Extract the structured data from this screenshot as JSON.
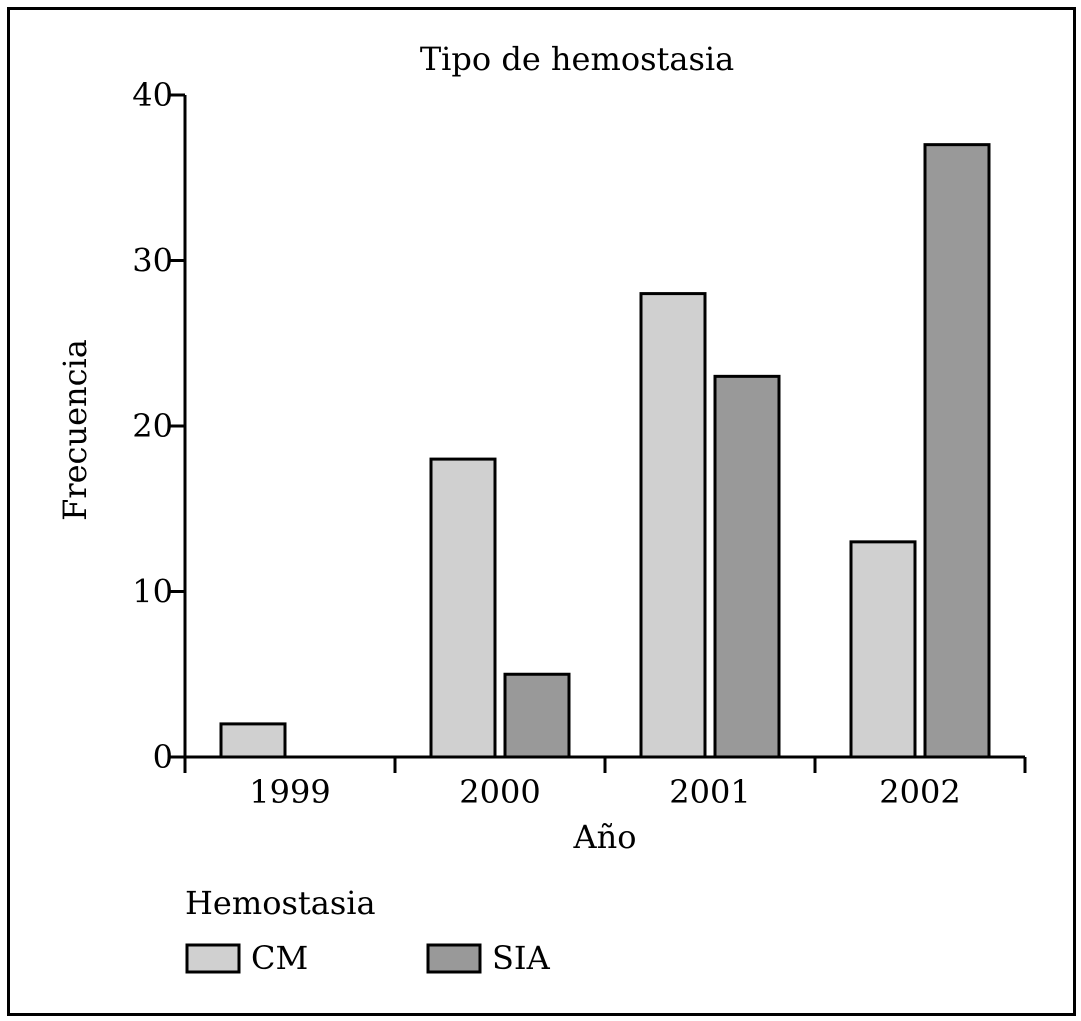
{
  "chart_data": {
    "type": "bar",
    "title": "Tipo de hemostasia",
    "xlabel": "Año",
    "ylabel": "Frecuencia",
    "categories": [
      "1999",
      "2000",
      "2001",
      "2002"
    ],
    "ylim": [
      0,
      40
    ],
    "yticks": [
      0,
      10,
      20,
      30,
      40
    ],
    "series": [
      {
        "name": "CM",
        "color": "#d0d0d0",
        "values": [
          2,
          18,
          28,
          13
        ]
      },
      {
        "name": "SIA",
        "color": "#999999",
        "values": [
          0,
          5,
          23,
          37
        ]
      }
    ],
    "legend": {
      "title": "Hemostasia",
      "position": "bottom-left"
    },
    "grid": false
  }
}
